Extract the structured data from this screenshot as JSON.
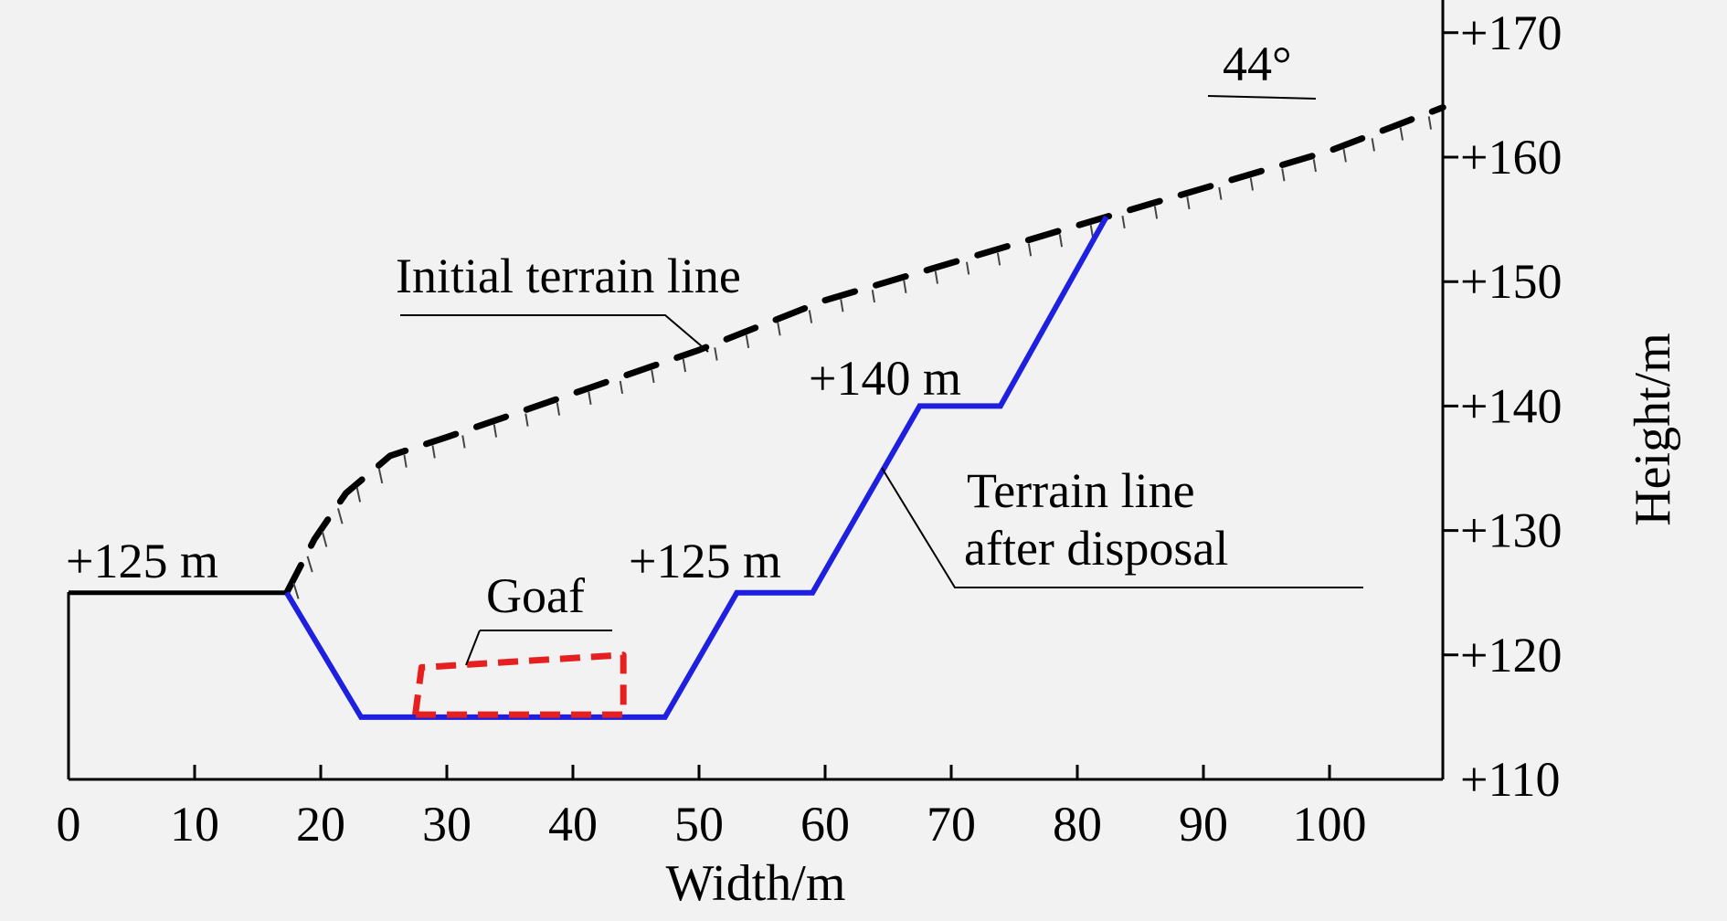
{
  "chart_data": {
    "type": "line",
    "xlabel": "Width/m",
    "ylabel": "Height/m",
    "xlim": [
      0,
      109
    ],
    "ylim": [
      110,
      173
    ],
    "x_ticks": [
      "0",
      "10",
      "20",
      "30",
      "40",
      "50",
      "60",
      "70",
      "80",
      "90",
      "100"
    ],
    "x_tick_values": [
      0,
      10,
      20,
      30,
      40,
      50,
      60,
      70,
      80,
      90,
      100
    ],
    "y_ticks": [
      "+110",
      "+120",
      "+130",
      "+140",
      "+150",
      "+160",
      "+170"
    ],
    "y_tick_values": [
      110,
      120,
      130,
      140,
      150,
      160,
      170
    ],
    "y_axis_side": "right",
    "grid": false,
    "series": [
      {
        "name": "Initial terrain line",
        "style": "dashed-hatched",
        "color": "#000000",
        "x": [
          0,
          17.3,
          19.5,
          22.0,
          25.5,
          30,
          40,
          50,
          60,
          70,
          82.3,
          90,
          100,
          109
        ],
        "y": [
          125,
          125,
          129.3,
          133.0,
          136.0,
          137.5,
          141.0,
          144.5,
          148.5,
          151.5,
          155.2,
          157.5,
          160.5,
          164.0
        ]
      },
      {
        "name": "Terrain line after disposal",
        "style": "solid",
        "color": "#1f1fe0",
        "x": [
          17.3,
          23.2,
          47.3,
          53.0,
          59.0,
          67.5,
          73.9,
          82.3
        ],
        "y": [
          125,
          115,
          115,
          125,
          125,
          140,
          140,
          155.2
        ]
      },
      {
        "name": "Goaf",
        "style": "dashed-outline",
        "color": "#e62020",
        "x": [
          27.5,
          28.0,
          44.0,
          44.0,
          27.5,
          27.5
        ],
        "y": [
          115.2,
          119.0,
          120.0,
          115.2,
          115.2,
          115.2
        ]
      }
    ],
    "annotations": [
      {
        "id": "ann-125-left",
        "text": "+125 m"
      },
      {
        "id": "ann-goaf",
        "text": "Goaf"
      },
      {
        "id": "ann-125-mid",
        "text": "+125 m"
      },
      {
        "id": "ann-140",
        "text": "+140 m"
      },
      {
        "id": "ann-initial",
        "text": "Initial terrain line"
      },
      {
        "id": "ann-after-1",
        "text": "Terrain line"
      },
      {
        "id": "ann-after-2",
        "text": "after disposal"
      },
      {
        "id": "ann-angle",
        "text": "44°"
      }
    ]
  }
}
